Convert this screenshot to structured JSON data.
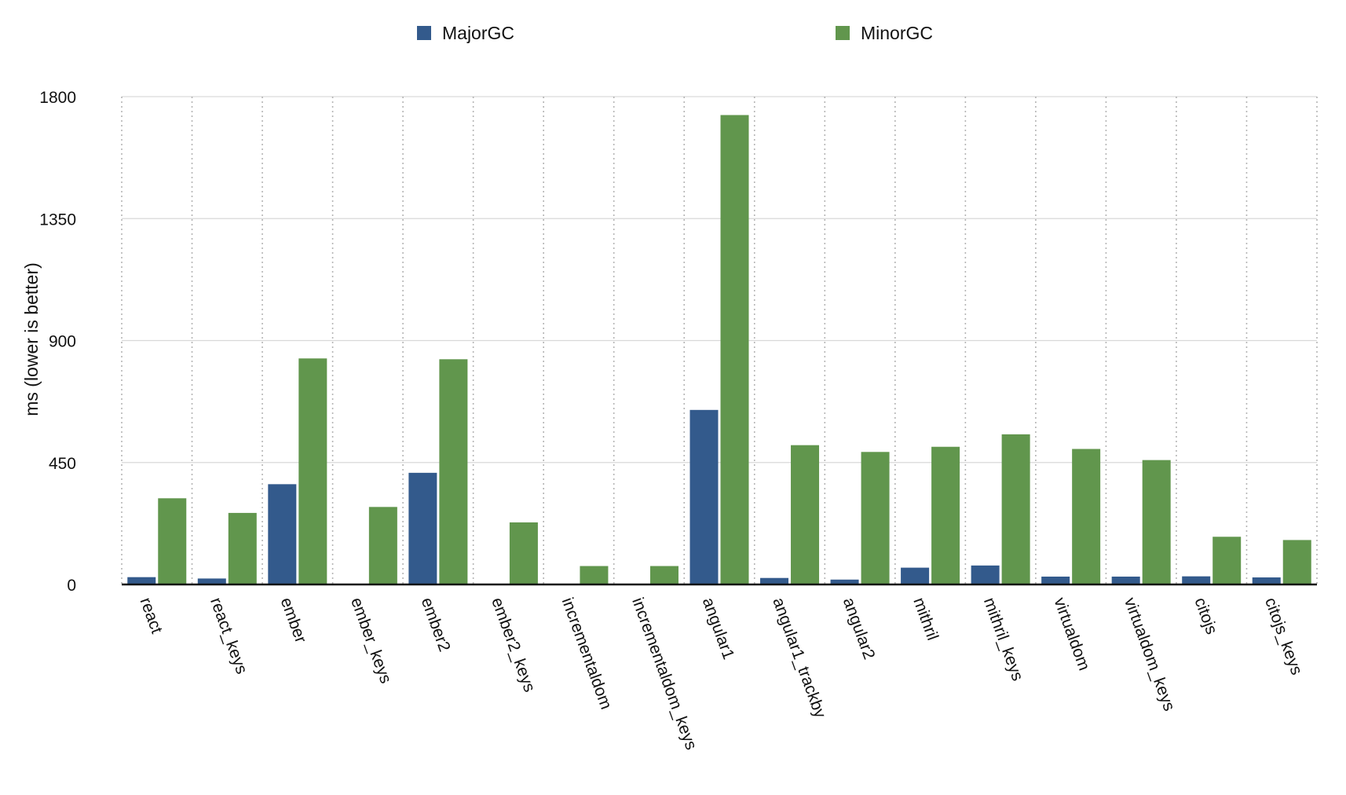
{
  "chart_data": {
    "type": "bar",
    "categories": [
      "react",
      "react_keys",
      "ember",
      "ember_keys",
      "ember2",
      "ember2_keys",
      "incrementaldom",
      "incrementaldom_keys",
      "angular1",
      "angular1_trackby",
      "angular2",
      "mithril",
      "mithril_keys",
      "virtualdom",
      "virtualdom_keys",
      "citojs",
      "citojs_keys"
    ],
    "series": [
      {
        "name": "MajorGC",
        "color": "#335a8c",
        "values": [
          27,
          22,
          370,
          0,
          412,
          0,
          0,
          0,
          644,
          24,
          18,
          62,
          70,
          29,
          29,
          30,
          26
        ]
      },
      {
        "name": "MinorGC",
        "color": "#61964d",
        "values": [
          318,
          264,
          834,
          286,
          831,
          229,
          68,
          68,
          1732,
          514,
          489,
          508,
          554,
          500,
          459,
          176,
          164
        ]
      }
    ],
    "xlabel": "",
    "ylabel": "ms (lower is better)",
    "ylim": [
      0,
      1800
    ],
    "yticks": [
      0,
      450,
      900,
      1350,
      1800
    ],
    "grid": true,
    "legend": "top"
  }
}
